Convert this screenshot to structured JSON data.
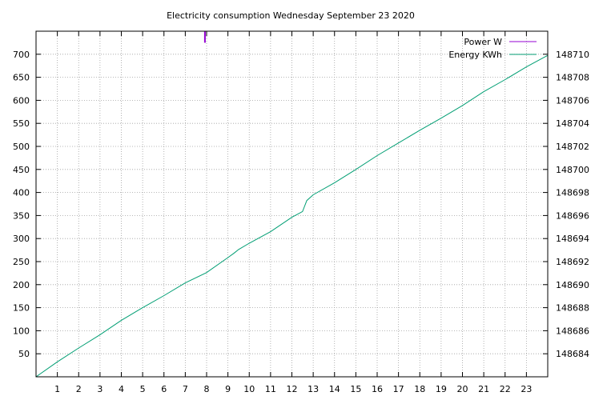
{
  "chart_data": {
    "type": "line",
    "title": "Electricity consumption Wednesday September 23 2020",
    "grid": true,
    "legend_position": "top-right",
    "x_axis": {
      "range": [
        0,
        24
      ],
      "ticks": [
        1,
        2,
        3,
        4,
        5,
        6,
        7,
        8,
        9,
        10,
        11,
        12,
        13,
        14,
        15,
        16,
        17,
        18,
        19,
        20,
        21,
        22,
        23
      ]
    },
    "y_axis_left": {
      "range": [
        0,
        750
      ],
      "ticks": [
        50,
        100,
        150,
        200,
        250,
        300,
        350,
        400,
        450,
        500,
        550,
        600,
        650,
        700
      ]
    },
    "y_axis_right": {
      "range": [
        148682,
        148712
      ],
      "ticks": [
        148684,
        148686,
        148688,
        148690,
        148692,
        148694,
        148696,
        148698,
        148700,
        148702,
        148704,
        148706,
        148708,
        148710
      ]
    },
    "series": [
      {
        "name": "Power W",
        "axis": "left",
        "color": "#9400d3",
        "x": [
          7.92,
          7.92
        ],
        "y": [
          725,
          750
        ]
      },
      {
        "name": "Energy KWh",
        "axis": "right",
        "color": "#009e73",
        "x": [
          0,
          1,
          2,
          3,
          4,
          5,
          6,
          7,
          8,
          9,
          9.3,
          9.5,
          10,
          11,
          12,
          12.5,
          12.7,
          13,
          14,
          15,
          16,
          17,
          18,
          19,
          20,
          21,
          22,
          23,
          24
        ],
        "y": [
          148682.0,
          148683.3,
          148684.5,
          148685.65,
          148686.9,
          148688.0,
          148689.05,
          148690.15,
          148691.05,
          148692.35,
          148692.75,
          148693.05,
          148693.6,
          148694.6,
          148695.85,
          148696.35,
          148697.3,
          148697.8,
          148698.85,
          148700.0,
          148701.2,
          148702.3,
          148703.4,
          148704.45,
          148705.55,
          148706.75,
          148707.8,
          148708.9,
          148709.9
        ]
      }
    ]
  }
}
